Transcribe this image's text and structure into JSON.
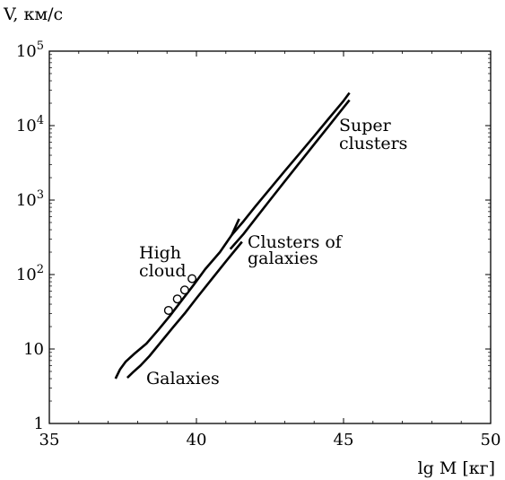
{
  "chart_data": {
    "type": "line",
    "title": "",
    "ylabel": "V, км/с",
    "xlabel": "lg M [кг]",
    "xlim": [
      35,
      50
    ],
    "ylim_log10": [
      0,
      5
    ],
    "yscale": "log",
    "x_ticks": [
      {
        "value": 35,
        "label": "35"
      },
      {
        "value": 40,
        "label": "40"
      },
      {
        "value": 45,
        "label": "45"
      },
      {
        "value": 50,
        "label": "50"
      }
    ],
    "y_ticks": [
      {
        "value": 1,
        "base": "1",
        "exp": ""
      },
      {
        "value": 10,
        "base": "10",
        "exp": ""
      },
      {
        "value": 100,
        "base": "10",
        "exp": "2"
      },
      {
        "value": 1000,
        "base": "10",
        "exp": "3"
      },
      {
        "value": 10000,
        "base": "10",
        "exp": "4"
      },
      {
        "value": 100000,
        "base": "10",
        "exp": "5"
      }
    ],
    "series": [
      {
        "x": [
          37.2,
          37.35,
          37.5,
          37.7,
          38.0,
          38.4,
          38.8,
          39.2,
          39.6,
          40.0,
          40.5,
          41.0,
          41.45
        ],
        "y": [
          3.8,
          4.8,
          5.9,
          7.4,
          9.6,
          13.6,
          19.8,
          29,
          42,
          62,
          99,
          158,
          260
        ]
      },
      {
        "x": [
          37.2,
          37.35,
          37.5,
          37.7,
          38.0,
          38.4,
          38.8,
          39.2,
          39.6,
          40.0,
          40.5,
          41.0,
          41.45
        ],
        "y": [
          3.8,
          4.8,
          5.9,
          7.4,
          9.6,
          13.6,
          19.8,
          29,
          42,
          62,
          99,
          158,
          260
        ]
      }
    ],
    "lines": [
      {
        "id": "upper-a",
        "x": [
          37.25,
          37.4,
          37.6,
          37.9,
          38.3,
          38.7,
          39.1,
          39.5,
          39.9,
          40.3,
          40.8,
          41.2,
          41.45
        ],
        "y": [
          4.0,
          5.3,
          6.8,
          8.7,
          11.8,
          18,
          28,
          45,
          72,
          118,
          200,
          340,
          560
        ]
      },
      {
        "id": "upper-b",
        "x": [
          41.2,
          41.6,
          42.0,
          42.5,
          43.0,
          43.5,
          44.0,
          44.5,
          45.0,
          45.2
        ],
        "y": [
          340,
          520,
          820,
          1420,
          2450,
          4200,
          7200,
          12500,
          21500,
          27500
        ]
      },
      {
        "id": "lower-a",
        "x": [
          37.65,
          37.85,
          38.1,
          38.4,
          38.8,
          39.2,
          39.6,
          40.0,
          40.5,
          41.0,
          41.55
        ],
        "y": [
          4.1,
          4.9,
          6.0,
          8.0,
          12.5,
          19.5,
          30,
          48,
          85,
          150,
          275
        ]
      },
      {
        "id": "lower-b",
        "x": [
          41.15,
          41.6,
          42.0,
          42.5,
          43.0,
          43.5,
          44.0,
          44.5,
          45.0,
          45.2
        ],
        "y": [
          220,
          350,
          560,
          1000,
          1780,
          3150,
          5600,
          9900,
          17500,
          22000
        ]
      }
    ],
    "markers": [
      {
        "x": 39.05,
        "y": 33
      },
      {
        "x": 39.35,
        "y": 47
      },
      {
        "x": 39.6,
        "y": 62
      },
      {
        "x": 39.85,
        "y": 88
      }
    ],
    "annotations": [
      {
        "id": "super",
        "lines": [
          "Super",
          "clusters"
        ]
      },
      {
        "id": "clusters",
        "lines": [
          "Clusters of",
          "galaxies"
        ]
      },
      {
        "id": "highcloud",
        "lines": [
          "High",
          "cloud"
        ]
      },
      {
        "id": "galaxies",
        "lines": [
          "Galaxies"
        ]
      }
    ],
    "grid": false,
    "legend": "none"
  }
}
